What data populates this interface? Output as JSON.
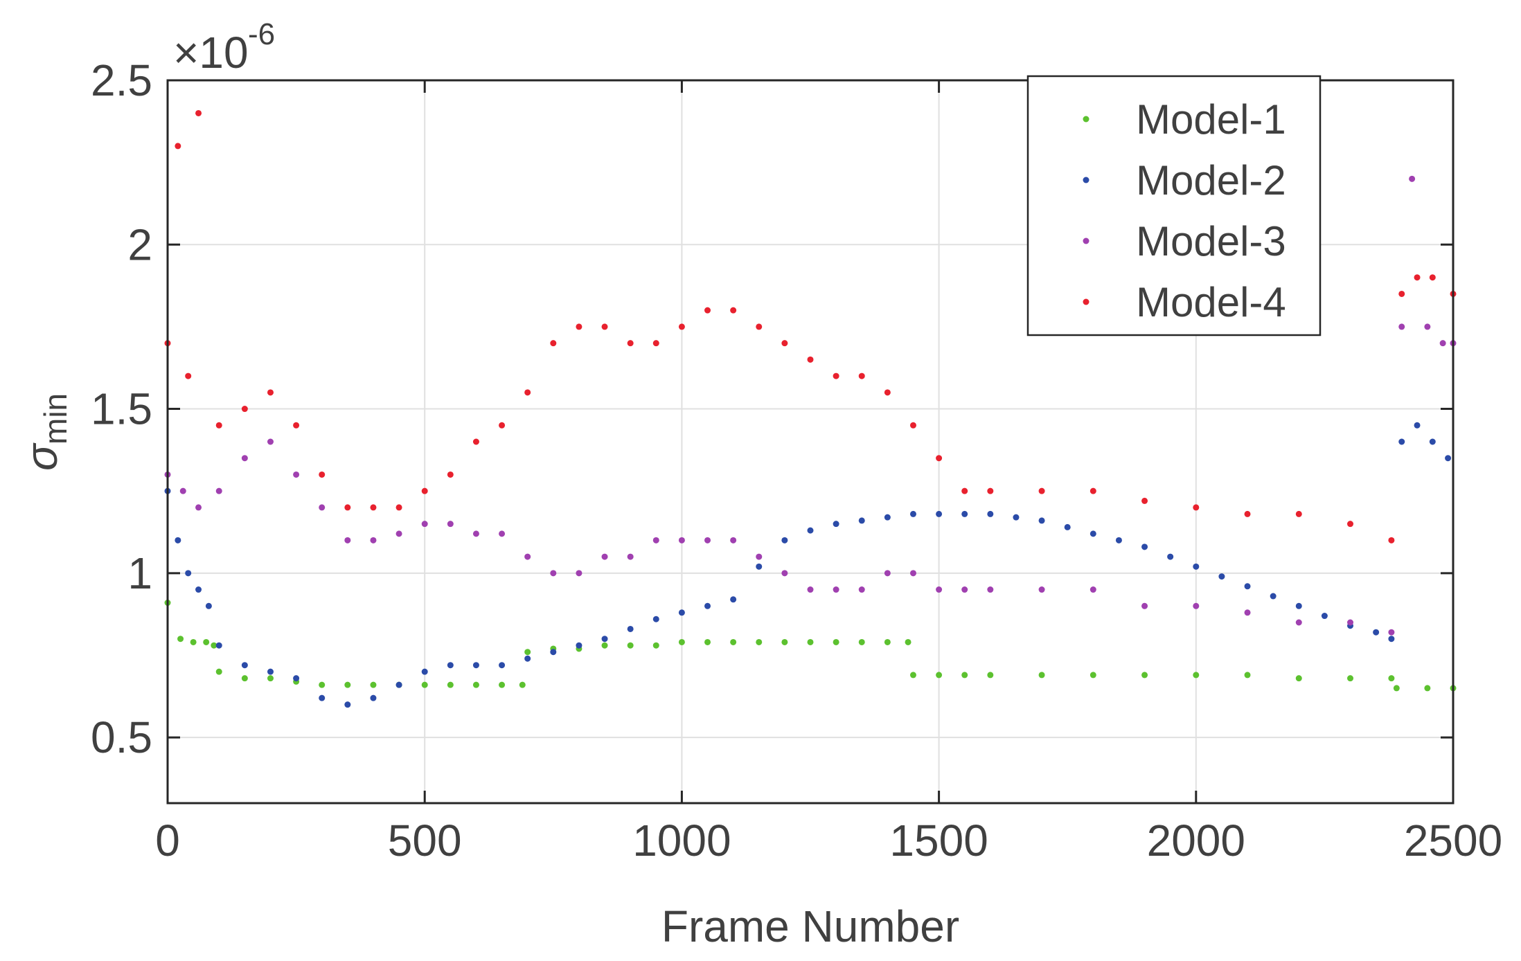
{
  "chart_data": {
    "type": "scatter",
    "title": "",
    "xlabel": "Frame Number",
    "ylabel": {
      "symbol": "σ",
      "subscript": "min"
    },
    "y_exponent": {
      "base": "×10",
      "power": "-6"
    },
    "xlim": [
      0,
      2500
    ],
    "ylim": [
      0.3,
      2.5
    ],
    "xticks": [
      0,
      500,
      1000,
      1500,
      2000,
      2500
    ],
    "xtick_labels": [
      "0",
      "500",
      "1000",
      "1500",
      "2000",
      "2500"
    ],
    "yticks": [
      0.5,
      1,
      1.5,
      2,
      2.5
    ],
    "ytick_labels": [
      "0.5",
      "1",
      "1.5",
      "2",
      "2.5"
    ],
    "grid": true,
    "legend_position": "top-right",
    "series": [
      {
        "name": "Model-1",
        "color": "#5CC12F",
        "points": [
          [
            0,
            0.91
          ],
          [
            25,
            0.8
          ],
          [
            50,
            0.79
          ],
          [
            75,
            0.79
          ],
          [
            90,
            0.78
          ],
          [
            100,
            0.7
          ],
          [
            150,
            0.68
          ],
          [
            200,
            0.68
          ],
          [
            250,
            0.67
          ],
          [
            300,
            0.66
          ],
          [
            350,
            0.66
          ],
          [
            400,
            0.66
          ],
          [
            450,
            0.66
          ],
          [
            500,
            0.66
          ],
          [
            550,
            0.66
          ],
          [
            600,
            0.66
          ],
          [
            650,
            0.66
          ],
          [
            690,
            0.66
          ],
          [
            700,
            0.76
          ],
          [
            750,
            0.77
          ],
          [
            800,
            0.77
          ],
          [
            850,
            0.78
          ],
          [
            900,
            0.78
          ],
          [
            950,
            0.78
          ],
          [
            1000,
            0.79
          ],
          [
            1050,
            0.79
          ],
          [
            1100,
            0.79
          ],
          [
            1150,
            0.79
          ],
          [
            1200,
            0.79
          ],
          [
            1250,
            0.79
          ],
          [
            1300,
            0.79
          ],
          [
            1350,
            0.79
          ],
          [
            1400,
            0.79
          ],
          [
            1440,
            0.79
          ],
          [
            1450,
            0.69
          ],
          [
            1500,
            0.69
          ],
          [
            1550,
            0.69
          ],
          [
            1600,
            0.69
          ],
          [
            1700,
            0.69
          ],
          [
            1800,
            0.69
          ],
          [
            1900,
            0.69
          ],
          [
            2000,
            0.69
          ],
          [
            2100,
            0.69
          ],
          [
            2200,
            0.68
          ],
          [
            2300,
            0.68
          ],
          [
            2380,
            0.68
          ],
          [
            2390,
            0.65
          ],
          [
            2450,
            0.65
          ],
          [
            2500,
            0.65
          ]
        ]
      },
      {
        "name": "Model-2",
        "color": "#2B4BA8",
        "points": [
          [
            0,
            1.25
          ],
          [
            20,
            1.1
          ],
          [
            40,
            1.0
          ],
          [
            60,
            0.95
          ],
          [
            80,
            0.9
          ],
          [
            100,
            0.78
          ],
          [
            150,
            0.72
          ],
          [
            200,
            0.7
          ],
          [
            250,
            0.68
          ],
          [
            300,
            0.62
          ],
          [
            350,
            0.6
          ],
          [
            400,
            0.62
          ],
          [
            450,
            0.66
          ],
          [
            500,
            0.7
          ],
          [
            550,
            0.72
          ],
          [
            600,
            0.72
          ],
          [
            650,
            0.72
          ],
          [
            700,
            0.74
          ],
          [
            750,
            0.76
          ],
          [
            800,
            0.78
          ],
          [
            850,
            0.8
          ],
          [
            900,
            0.83
          ],
          [
            950,
            0.86
          ],
          [
            1000,
            0.88
          ],
          [
            1050,
            0.9
          ],
          [
            1100,
            0.92
          ],
          [
            1150,
            1.02
          ],
          [
            1200,
            1.1
          ],
          [
            1250,
            1.13
          ],
          [
            1300,
            1.15
          ],
          [
            1350,
            1.16
          ],
          [
            1400,
            1.17
          ],
          [
            1450,
            1.18
          ],
          [
            1500,
            1.18
          ],
          [
            1550,
            1.18
          ],
          [
            1600,
            1.18
          ],
          [
            1650,
            1.17
          ],
          [
            1700,
            1.16
          ],
          [
            1750,
            1.14
          ],
          [
            1800,
            1.12
          ],
          [
            1850,
            1.1
          ],
          [
            1900,
            1.08
          ],
          [
            1950,
            1.05
          ],
          [
            2000,
            1.02
          ],
          [
            2050,
            0.99
          ],
          [
            2100,
            0.96
          ],
          [
            2150,
            0.93
          ],
          [
            2200,
            0.9
          ],
          [
            2250,
            0.87
          ],
          [
            2300,
            0.84
          ],
          [
            2350,
            0.82
          ],
          [
            2380,
            0.8
          ],
          [
            2400,
            1.4
          ],
          [
            2430,
            1.45
          ],
          [
            2460,
            1.4
          ],
          [
            2490,
            1.35
          ]
        ]
      },
      {
        "name": "Model-3",
        "color": "#A040B0",
        "points": [
          [
            0,
            1.3
          ],
          [
            30,
            1.25
          ],
          [
            60,
            1.2
          ],
          [
            100,
            1.25
          ],
          [
            150,
            1.35
          ],
          [
            200,
            1.4
          ],
          [
            250,
            1.3
          ],
          [
            300,
            1.2
          ],
          [
            350,
            1.1
          ],
          [
            400,
            1.1
          ],
          [
            450,
            1.12
          ],
          [
            500,
            1.15
          ],
          [
            550,
            1.15
          ],
          [
            600,
            1.12
          ],
          [
            650,
            1.12
          ],
          [
            700,
            1.05
          ],
          [
            750,
            1.0
          ],
          [
            800,
            1.0
          ],
          [
            850,
            1.05
          ],
          [
            900,
            1.05
          ],
          [
            950,
            1.1
          ],
          [
            1000,
            1.1
          ],
          [
            1050,
            1.1
          ],
          [
            1100,
            1.1
          ],
          [
            1150,
            1.05
          ],
          [
            1200,
            1.0
          ],
          [
            1250,
            0.95
          ],
          [
            1300,
            0.95
          ],
          [
            1350,
            0.95
          ],
          [
            1400,
            1.0
          ],
          [
            1450,
            1.0
          ],
          [
            1500,
            0.95
          ],
          [
            1550,
            0.95
          ],
          [
            1600,
            0.95
          ],
          [
            1700,
            0.95
          ],
          [
            1800,
            0.95
          ],
          [
            1900,
            0.9
          ],
          [
            2000,
            0.9
          ],
          [
            2100,
            0.88
          ],
          [
            2200,
            0.85
          ],
          [
            2300,
            0.85
          ],
          [
            2380,
            0.82
          ],
          [
            2400,
            1.75
          ],
          [
            2420,
            2.2
          ],
          [
            2450,
            1.75
          ],
          [
            2480,
            1.7
          ],
          [
            2500,
            1.7
          ]
        ]
      },
      {
        "name": "Model-4",
        "color": "#E8212E",
        "points": [
          [
            0,
            1.7
          ],
          [
            20,
            2.3
          ],
          [
            40,
            1.6
          ],
          [
            60,
            2.4
          ],
          [
            100,
            1.45
          ],
          [
            150,
            1.5
          ],
          [
            200,
            1.55
          ],
          [
            250,
            1.45
          ],
          [
            300,
            1.3
          ],
          [
            350,
            1.2
          ],
          [
            400,
            1.2
          ],
          [
            450,
            1.2
          ],
          [
            500,
            1.25
          ],
          [
            550,
            1.3
          ],
          [
            600,
            1.4
          ],
          [
            650,
            1.45
          ],
          [
            700,
            1.55
          ],
          [
            750,
            1.7
          ],
          [
            800,
            1.75
          ],
          [
            850,
            1.75
          ],
          [
            900,
            1.7
          ],
          [
            950,
            1.7
          ],
          [
            1000,
            1.75
          ],
          [
            1050,
            1.8
          ],
          [
            1100,
            1.8
          ],
          [
            1150,
            1.75
          ],
          [
            1200,
            1.7
          ],
          [
            1250,
            1.65
          ],
          [
            1300,
            1.6
          ],
          [
            1350,
            1.6
          ],
          [
            1400,
            1.55
          ],
          [
            1450,
            1.45
          ],
          [
            1500,
            1.35
          ],
          [
            1550,
            1.25
          ],
          [
            1600,
            1.25
          ],
          [
            1700,
            1.25
          ],
          [
            1800,
            1.25
          ],
          [
            1900,
            1.22
          ],
          [
            2000,
            1.2
          ],
          [
            2100,
            1.18
          ],
          [
            2200,
            1.18
          ],
          [
            2300,
            1.15
          ],
          [
            2380,
            1.1
          ],
          [
            2400,
            1.85
          ],
          [
            2430,
            1.9
          ],
          [
            2460,
            1.9
          ],
          [
            2500,
            1.85
          ]
        ]
      }
    ]
  }
}
